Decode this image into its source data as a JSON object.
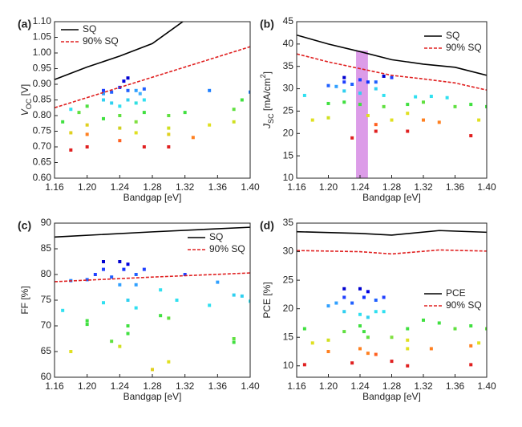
{
  "chart_data": [
    {
      "type": "scatter",
      "panel_label": "(a)",
      "xlabel": "Bandgap [eV]",
      "ylabel": [
        {
          "text": "V"
        },
        {
          "text": "OC",
          "shift": "sub"
        },
        {
          "text": " [V]"
        }
      ],
      "xlim": [
        1.16,
        1.4
      ],
      "xticks": [
        1.16,
        {
          "value": 1.2,
          "label": "1.20"
        },
        1.24,
        1.28,
        1.32,
        1.36,
        {
          "value": 1.4,
          "label": "1.40"
        }
      ],
      "ylim": [
        0.6,
        1.1
      ],
      "yticks": [
        {
          "value": 0.6,
          "label": "0.60"
        },
        0.65,
        {
          "value": 0.7,
          "label": "0.70"
        },
        0.75,
        {
          "value": 0.8,
          "label": "0.80"
        },
        0.85,
        {
          "value": 0.9,
          "label": "0.90"
        },
        0.95,
        {
          "value": 1.0,
          "label": "1.00"
        },
        1.05,
        {
          "value": 1.1,
          "label": "1.10"
        }
      ],
      "legend": "upper left",
      "lines": [
        {
          "name": "SQ",
          "color": "#000000",
          "dash": false,
          "x": [
            1.16,
            1.2,
            1.24,
            1.28,
            1.32
          ],
          "y": [
            0.915,
            0.955,
            0.99,
            1.03,
            1.105
          ]
        },
        {
          "name": "90% SQ",
          "color": "#e02020",
          "dash": true,
          "x": [
            1.16,
            1.24,
            1.32,
            1.4
          ],
          "y": [
            0.825,
            0.89,
            0.955,
            1.02
          ]
        }
      ],
      "points": {
        "x": [
          1.22,
          1.22,
          1.23,
          1.24,
          1.245,
          1.25,
          1.25,
          1.26,
          1.27,
          1.265,
          1.22,
          1.23,
          1.24,
          1.25,
          1.26,
          1.27,
          1.18,
          1.35,
          1.4,
          1.17,
          1.19,
          1.2,
          1.22,
          1.24,
          1.26,
          1.27,
          1.3,
          1.32,
          1.38,
          1.39,
          1.18,
          1.2,
          1.24,
          1.26,
          1.3,
          1.35,
          1.38,
          1.3,
          1.2,
          1.24,
          1.33,
          1.18,
          1.2,
          1.27,
          1.3
        ],
        "y": [
          0.88,
          0.87,
          0.875,
          0.89,
          0.91,
          0.92,
          0.88,
          0.88,
          0.885,
          0.87,
          0.85,
          0.84,
          0.83,
          0.85,
          0.84,
          0.85,
          0.82,
          0.88,
          0.875,
          0.78,
          0.81,
          0.83,
          0.79,
          0.8,
          0.78,
          0.81,
          0.8,
          0.81,
          0.82,
          0.85,
          0.745,
          0.77,
          0.76,
          0.745,
          0.76,
          0.77,
          0.78,
          0.74,
          0.74,
          0.72,
          0.73,
          0.69,
          0.7,
          0.7,
          0.7
        ],
        "colors": [
          "#2040ff",
          "#30a0ff",
          "#2060ff",
          "#1030ff",
          "#0000e0",
          "#0000d0",
          "#2060ff",
          "#30a0ff",
          "#2060ff",
          "#40b0ff",
          "#30d0f0",
          "#30d0f0",
          "#30e0f0",
          "#30d0f0",
          "#30e0e0",
          "#30e0f0",
          "#30e0f0",
          "#2080ff",
          "#2080ff",
          "#40e040",
          "#60e040",
          "#50e040",
          "#40e040",
          "#60e040",
          "#80e040",
          "#40e040",
          "#60e040",
          "#40e040",
          "#60e040",
          "#40e040",
          "#e0d020",
          "#e0d020",
          "#d0d020",
          "#e0e020",
          "#d0e020",
          "#e0e020",
          "#d0e020",
          "#e0d020",
          "#ff8020",
          "#ff6020",
          "#ff8020",
          "#e02020",
          "#e02020",
          "#e02020",
          "#e02020"
        ]
      }
    },
    {
      "type": "scatter",
      "panel_label": "(b)",
      "xlabel": "Bandgap [eV]",
      "ylabel": [
        {
          "text": "J"
        },
        {
          "text": "SC",
          "shift": "sub"
        },
        {
          "text": " [mA/cm"
        },
        {
          "text": "2",
          "shift": "super"
        },
        {
          "text": "]"
        }
      ],
      "xlim": [
        1.16,
        1.4
      ],
      "xticks": [
        1.16,
        {
          "value": 1.2,
          "label": "1.20"
        },
        1.24,
        1.28,
        1.32,
        1.36,
        {
          "value": 1.4,
          "label": "1.40"
        }
      ],
      "ylim": [
        10,
        45
      ],
      "yticks": [
        10,
        15,
        20,
        25,
        30,
        35,
        40,
        45
      ],
      "legend": "upper right",
      "highlight": {
        "x": [
          1.235,
          1.25
        ],
        "y": [
          10,
          38.5
        ],
        "color": "#dc9ce8"
      },
      "lines": [
        {
          "name": "SQ",
          "color": "#000000",
          "dash": false,
          "x": [
            1.16,
            1.2,
            1.24,
            1.28,
            1.32,
            1.36,
            1.4
          ],
          "y": [
            42,
            40,
            38.3,
            36.5,
            35.5,
            34.8,
            33
          ]
        },
        {
          "name": "90% SQ",
          "color": "#e02020",
          "dash": true,
          "x": [
            1.16,
            1.2,
            1.24,
            1.28,
            1.32,
            1.36,
            1.4
          ],
          "y": [
            37.8,
            36,
            34.5,
            33,
            32.2,
            31.3,
            29.7
          ]
        }
      ],
      "points": {
        "x": [
          1.22,
          1.22,
          1.23,
          1.24,
          1.25,
          1.26,
          1.27,
          1.28,
          1.2,
          1.21,
          1.17,
          1.22,
          1.24,
          1.27,
          1.31,
          1.33,
          1.35,
          1.26,
          1.2,
          1.22,
          1.24,
          1.3,
          1.32,
          1.36,
          1.38,
          1.4,
          1.27,
          1.18,
          1.2,
          1.25,
          1.28,
          1.3,
          1.39,
          1.32,
          1.34,
          1.26,
          1.23,
          1.26,
          1.3,
          1.38
        ],
        "y": [
          32.5,
          31.5,
          31,
          32,
          31.5,
          31.5,
          32.8,
          32.5,
          30.7,
          30.5,
          28.5,
          29.5,
          29,
          28.5,
          28.2,
          28.3,
          28,
          30,
          26.7,
          27,
          26.5,
          26.5,
          27,
          26,
          26.5,
          26,
          26,
          23,
          23.5,
          24,
          23,
          24.5,
          23,
          23,
          22.5,
          22,
          19,
          20.5,
          20.5,
          19.5
        ],
        "colors": [
          "#0000d0",
          "#2040ff",
          "#2060ff",
          "#2040ff",
          "#1030ff",
          "#2060ff",
          "#0000d0",
          "#2040ff",
          "#2060ff",
          "#30a0ff",
          "#30e0f0",
          "#30d0f0",
          "#30d0f0",
          "#30e0f0",
          "#30e0f0",
          "#30e0f0",
          "#30e0f0",
          "#30d0f0",
          "#40e040",
          "#40e040",
          "#40e040",
          "#40e040",
          "#60e040",
          "#60e040",
          "#40e040",
          "#40e040",
          "#60e040",
          "#e0e020",
          "#d0e020",
          "#e0e020",
          "#e0e020",
          "#e0e020",
          "#e0e020",
          "#ff8020",
          "#ff8020",
          "#ff6020",
          "#e02020",
          "#e02020",
          "#e02020",
          "#e02020"
        ]
      }
    },
    {
      "type": "scatter",
      "panel_label": "(c)",
      "xlabel": "Bandgap [eV]",
      "ylabel": [
        {
          "text": "FF [%]"
        }
      ],
      "xlim": [
        1.16,
        1.4
      ],
      "xticks": [
        1.16,
        {
          "value": 1.2,
          "label": "1.20"
        },
        1.24,
        1.28,
        1.32,
        1.36,
        {
          "value": 1.4,
          "label": "1.40"
        }
      ],
      "ylim": [
        60,
        90
      ],
      "yticks": [
        60,
        65,
        70,
        75,
        80,
        85,
        90
      ],
      "legend": "upper right",
      "lines": [
        {
          "name": "SQ",
          "color": "#000000",
          "dash": false,
          "x": [
            1.16,
            1.28,
            1.4
          ],
          "y": [
            87.3,
            88.3,
            89.2
          ]
        },
        {
          "name": "90% SQ",
          "color": "#e02020",
          "dash": true,
          "x": [
            1.16,
            1.28,
            1.4
          ],
          "y": [
            78.6,
            79.5,
            80.3
          ]
        }
      ],
      "points": {
        "x": [
          1.21,
          1.22,
          1.22,
          1.23,
          1.24,
          1.245,
          1.25,
          1.26,
          1.27,
          1.2,
          1.18,
          1.32,
          1.26,
          1.24,
          1.17,
          1.22,
          1.25,
          1.26,
          1.29,
          1.31,
          1.35,
          1.36,
          1.38,
          1.39,
          1.4,
          1.2,
          1.2,
          1.23,
          1.25,
          1.25,
          1.29,
          1.3,
          1.38,
          1.38,
          1.18,
          1.24,
          1.3,
          1.28
        ],
        "y": [
          80,
          82.5,
          81,
          79.5,
          82.5,
          81,
          82,
          80,
          81,
          79,
          78.8,
          80,
          78,
          78,
          73,
          74.5,
          75,
          73.5,
          77,
          75,
          74,
          78.5,
          76,
          75.8,
          74.8,
          71,
          70.3,
          67,
          70,
          68.5,
          72,
          71.5,
          67.5,
          66.8,
          65,
          66,
          63,
          61.5
        ],
        "colors": [
          "#2040ff",
          "#0000d0",
          "#2040ff",
          "#2060ff",
          "#0000d0",
          "#1030ff",
          "#0000e0",
          "#2060ff",
          "#2040ff",
          "#2060ff",
          "#2080ff",
          "#2040ff",
          "#30a0ff",
          "#30a0ff",
          "#30e0f0",
          "#30e0f0",
          "#30d0f0",
          "#30e0f0",
          "#30e0f0",
          "#30e0f0",
          "#30e0f0",
          "#30a0ff",
          "#30d0f0",
          "#30d0f0",
          "#30e0f0",
          "#40e040",
          "#40e040",
          "#60e040",
          "#40e040",
          "#40e040",
          "#40e040",
          "#60e040",
          "#60e040",
          "#40e040",
          "#e0e020",
          "#d0e020",
          "#e0e020",
          "#e0d020"
        ]
      }
    },
    {
      "type": "scatter",
      "panel_label": "(d)",
      "xlabel": "Bandgap [eV]",
      "ylabel": [
        {
          "text": "PCE [%]"
        }
      ],
      "xlim": [
        1.16,
        1.4
      ],
      "xticks": [
        1.16,
        {
          "value": 1.2,
          "label": "1.20"
        },
        1.24,
        1.28,
        1.32,
        1.36,
        {
          "value": 1.4,
          "label": "1.40"
        }
      ],
      "ylim": [
        8,
        35
      ],
      "yticks": [
        10,
        15,
        20,
        25,
        30,
        35
      ],
      "legend": "center right",
      "lines": [
        {
          "name": "PCE",
          "color": "#000000",
          "dash": false,
          "x": [
            1.16,
            1.24,
            1.28,
            1.34,
            1.4
          ],
          "y": [
            33.5,
            33.2,
            32.9,
            33.7,
            33.4
          ]
        },
        {
          "name": "90% SQ",
          "color": "#e02020",
          "dash": true,
          "x": [
            1.16,
            1.24,
            1.28,
            1.34,
            1.4
          ],
          "y": [
            30.2,
            30,
            29.6,
            30.3,
            30.1
          ]
        }
      ],
      "points": {
        "x": [
          1.22,
          1.22,
          1.23,
          1.24,
          1.245,
          1.25,
          1.26,
          1.27,
          1.2,
          1.21,
          1.22,
          1.24,
          1.25,
          1.26,
          1.27,
          1.17,
          1.22,
          1.24,
          1.245,
          1.25,
          1.3,
          1.32,
          1.34,
          1.36,
          1.38,
          1.4,
          1.28,
          1.18,
          1.2,
          1.3,
          1.3,
          1.39,
          1.2,
          1.24,
          1.25,
          1.26,
          1.33,
          1.38,
          1.17,
          1.23,
          1.28,
          1.3,
          1.38
        ],
        "y": [
          23.5,
          22,
          21,
          23.5,
          22,
          23,
          21.5,
          22,
          20.5,
          21,
          19.5,
          19,
          18.5,
          19.5,
          19.5,
          16.5,
          16,
          17,
          16,
          15,
          16.5,
          18,
          17.5,
          16.5,
          17,
          16.5,
          15,
          14,
          14.5,
          14.5,
          13,
          14,
          12.5,
          13,
          12.2,
          12,
          13,
          13.5,
          10.2,
          10.5,
          10.8,
          10,
          10.2
        ],
        "colors": [
          "#0000d0",
          "#2040ff",
          "#2060ff",
          "#0000d0",
          "#1030ff",
          "#0000e0",
          "#2060ff",
          "#2040ff",
          "#30a0ff",
          "#30a0ff",
          "#30d0f0",
          "#30e0f0",
          "#30d0f0",
          "#30e0f0",
          "#30e0f0",
          "#40e040",
          "#60e040",
          "#40e040",
          "#40e040",
          "#60e040",
          "#40e040",
          "#40e040",
          "#40e040",
          "#60e040",
          "#40e040",
          "#60e040",
          "#80e040",
          "#e0e020",
          "#d0e020",
          "#e0e020",
          "#e0e020",
          "#e0e020",
          "#ff8020",
          "#ff8020",
          "#ff8020",
          "#ff6020",
          "#ff8020",
          "#ff8020",
          "#e02020",
          "#e02020",
          "#e02020",
          "#e02020",
          "#e02020"
        ]
      }
    }
  ]
}
